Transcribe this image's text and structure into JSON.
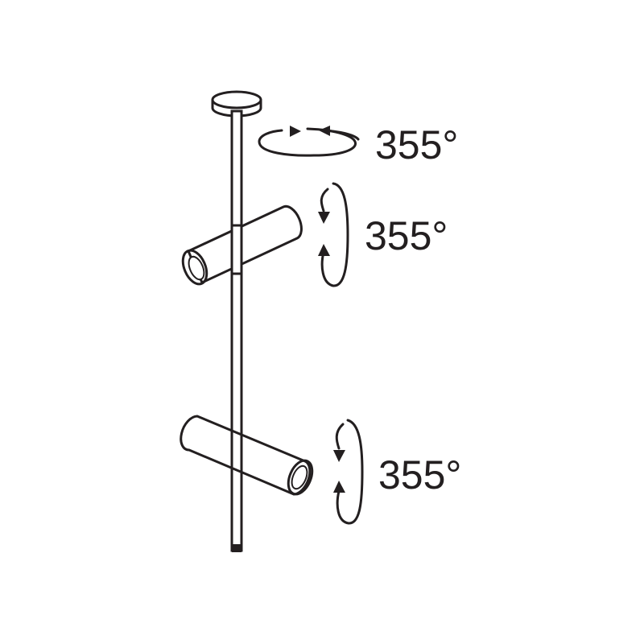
{
  "colors": {
    "ink": "#231f20",
    "fill": "#ffffff",
    "shade": "#e6e6e6",
    "background": "#ffffff"
  },
  "rotations": [
    {
      "name": "ceiling-rotation",
      "label": "355°",
      "icon": "horizontal-rotation-arrows"
    },
    {
      "name": "upper-spot-rotation",
      "label": "355°",
      "icon": "vertical-rotation-arrows"
    },
    {
      "name": "lower-spot-rotation",
      "label": "355°",
      "icon": "vertical-rotation-arrows"
    }
  ]
}
